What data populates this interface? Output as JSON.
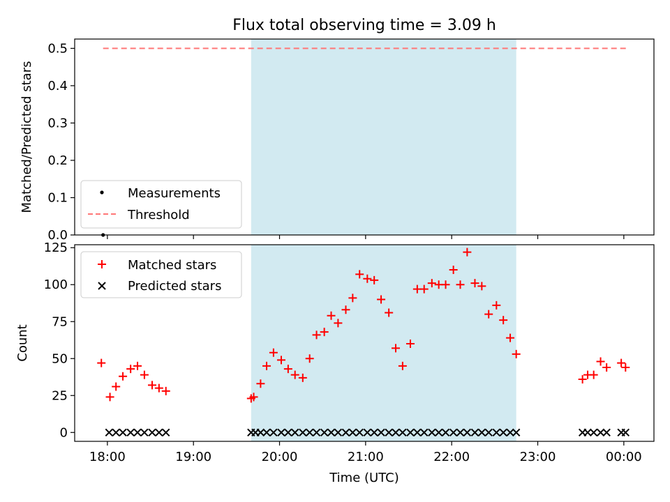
{
  "chart_data": [
    {
      "type": "scatter",
      "title": "Flux total observing time = 3.09 h",
      "xlabel": "",
      "ylabel": "Matched/Predicted stars",
      "xlim": [
        17.62,
        24.35
      ],
      "ylim": [
        0.0,
        0.525
      ],
      "yticks": [
        0.0,
        0.1,
        0.2,
        0.3,
        0.4,
        0.5
      ],
      "ytick_labels": [
        "0.0",
        "0.1",
        "0.2",
        "0.3",
        "0.4",
        "0.5"
      ],
      "shaded_span": [
        19.67,
        22.75
      ],
      "shade_color": "#add8e6",
      "series": [
        {
          "name": "Measurements",
          "marker": "dot",
          "color": "#000000",
          "x": [
            17.95
          ],
          "y": [
            0.0
          ]
        },
        {
          "name": "Threshold",
          "style": "dashed",
          "color": "#ff7777",
          "x": [
            17.95,
            24.03
          ],
          "y": [
            0.5,
            0.5
          ]
        }
      ],
      "legend": {
        "position": "lower-left",
        "entries": [
          "Measurements",
          "Threshold"
        ]
      }
    },
    {
      "type": "scatter",
      "xlabel": "Time (UTC)",
      "ylabel": "Count",
      "xlim": [
        17.62,
        24.35
      ],
      "ylim": [
        -6,
        127
      ],
      "yticks": [
        0,
        25,
        50,
        75,
        100,
        125
      ],
      "ytick_labels": [
        "0",
        "25",
        "50",
        "75",
        "100",
        "125"
      ],
      "xticks": [
        18,
        19,
        20,
        21,
        22,
        23,
        24
      ],
      "xtick_labels": [
        "18:00",
        "19:00",
        "20:00",
        "21:00",
        "22:00",
        "23:00",
        "00:00"
      ],
      "shaded_span": [
        19.67,
        22.75
      ],
      "shade_color": "#add8e6",
      "series": [
        {
          "name": "Matched stars",
          "marker": "plus",
          "color": "#ff0000",
          "x": [
            17.93,
            18.03,
            18.1,
            18.18,
            18.27,
            18.35,
            18.43,
            18.52,
            18.6,
            18.68,
            19.67,
            19.7,
            19.78,
            19.85,
            19.93,
            20.02,
            20.1,
            20.18,
            20.27,
            20.35,
            20.43,
            20.52,
            20.6,
            20.68,
            20.77,
            20.85,
            20.93,
            21.02,
            21.1,
            21.18,
            21.27,
            21.35,
            21.43,
            21.52,
            21.6,
            21.68,
            21.77,
            21.85,
            21.93,
            22.02,
            22.1,
            22.18,
            22.27,
            22.35,
            22.43,
            22.52,
            22.6,
            22.68,
            22.75,
            23.52,
            23.58,
            23.65,
            23.73,
            23.8,
            23.97,
            24.02
          ],
          "y": [
            47,
            24,
            31,
            38,
            43,
            45,
            39,
            32,
            30,
            28,
            23,
            24,
            33,
            45,
            54,
            49,
            43,
            39,
            37,
            50,
            66,
            68,
            79,
            74,
            83,
            91,
            107,
            104,
            103,
            90,
            81,
            57,
            45,
            60,
            97,
            97,
            101,
            100,
            100,
            110,
            100,
            122,
            101,
            99,
            80,
            86,
            76,
            64,
            53,
            36,
            39,
            39,
            48,
            44,
            47,
            44
          ]
        },
        {
          "name": "Predicted stars",
          "marker": "x",
          "color": "#000000",
          "x": [
            18.02,
            18.1,
            18.18,
            18.27,
            18.35,
            18.43,
            18.52,
            18.6,
            18.68,
            19.67,
            19.72,
            19.78,
            19.85,
            19.93,
            20.02,
            20.1,
            20.18,
            20.27,
            20.35,
            20.43,
            20.52,
            20.6,
            20.68,
            20.77,
            20.85,
            20.93,
            21.02,
            21.1,
            21.18,
            21.27,
            21.35,
            21.43,
            21.52,
            21.6,
            21.68,
            21.77,
            21.85,
            21.93,
            22.02,
            22.1,
            22.18,
            22.27,
            22.35,
            22.43,
            22.52,
            22.6,
            22.68,
            22.75,
            23.52,
            23.58,
            23.65,
            23.73,
            23.8,
            23.97,
            24.02
          ],
          "y": [
            0,
            0,
            0,
            0,
            0,
            0,
            0,
            0,
            0,
            0,
            0,
            0,
            0,
            0,
            0,
            0,
            0,
            0,
            0,
            0,
            0,
            0,
            0,
            0,
            0,
            0,
            0,
            0,
            0,
            0,
            0,
            0,
            0,
            0,
            0,
            0,
            0,
            0,
            0,
            0,
            0,
            0,
            0,
            0,
            0,
            0,
            0,
            0,
            0,
            0,
            0,
            0,
            0,
            0,
            0
          ]
        }
      ],
      "legend": {
        "position": "top-left",
        "entries": [
          "Matched stars",
          "Predicted stars"
        ]
      }
    }
  ]
}
